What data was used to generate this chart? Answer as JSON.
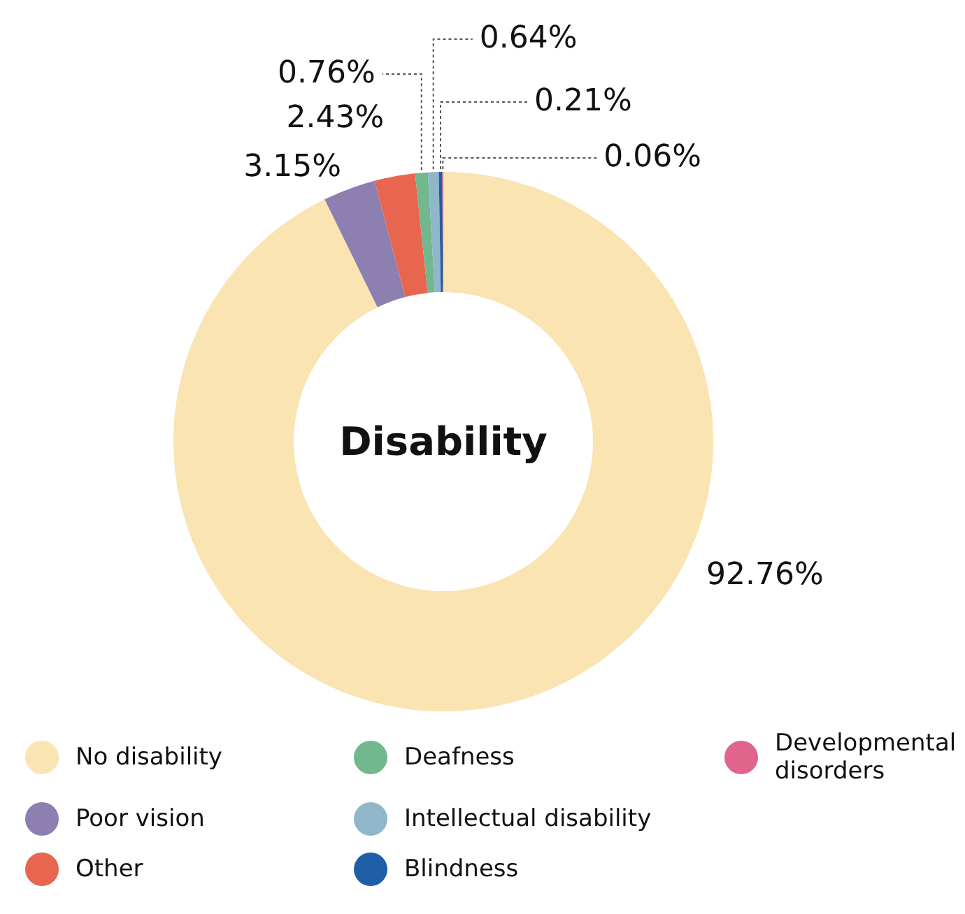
{
  "chart_data": {
    "type": "donut",
    "title": "Disability",
    "categories": [
      "No disability",
      "Poor vision",
      "Other",
      "Deafness",
      "Intellectual disability",
      "Blindness",
      "Developmental disorders"
    ],
    "values": [
      92.76,
      3.15,
      2.43,
      0.76,
      0.64,
      0.21,
      0.06
    ],
    "colors": [
      "#f9e4b2",
      "#8d7fb0",
      "#e8654f",
      "#71b88e",
      "#8fb6c9",
      "#1f5fa8",
      "#e0648c"
    ],
    "value_labels": [
      "92.76%",
      "3.15%",
      "2.43%",
      "0.76%",
      "0.64%",
      "0.21%",
      "0.06%"
    ],
    "legend": "bottom"
  }
}
